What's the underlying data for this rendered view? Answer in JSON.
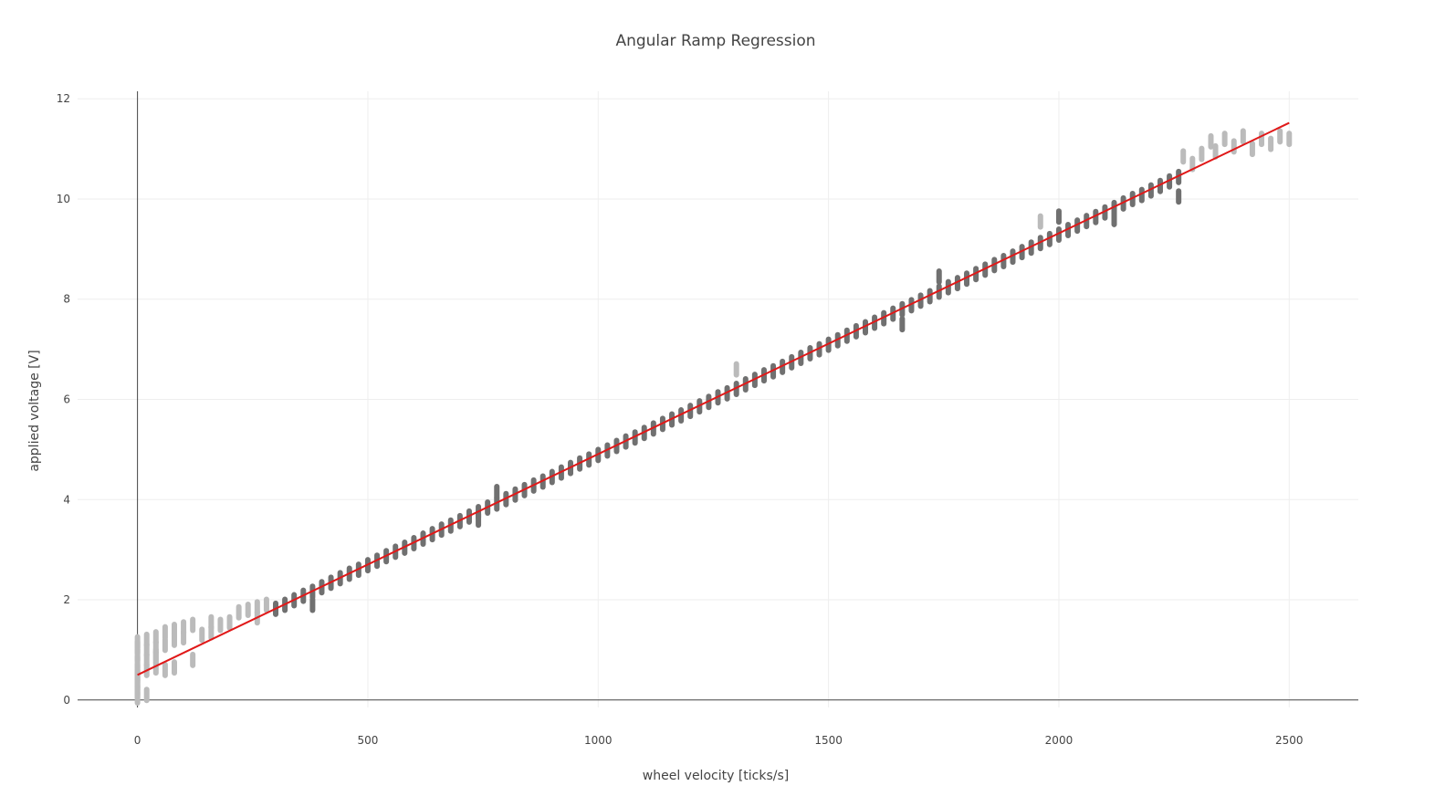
{
  "chart_data": {
    "type": "scatter",
    "title": "Angular Ramp Regression",
    "xlabel": "wheel velocity [ticks/s]",
    "ylabel": "applied voltage [V]",
    "xlim": [
      -130,
      2650
    ],
    "ylim": [
      -0.15,
      12.15
    ],
    "x_ticks": [
      0,
      500,
      1000,
      1500,
      2000,
      2500
    ],
    "y_ticks": [
      0,
      2,
      4,
      6,
      8,
      10,
      12
    ],
    "grid": true,
    "legend": "none",
    "colors": {
      "fit_line": "#e01818",
      "included": "#707070",
      "excluded": "#bbbbbb",
      "zero_line": "#444444",
      "grid": "#eeeeee"
    },
    "series": [
      {
        "kind": "fit_line",
        "x": [
          0,
          2500
        ],
        "y": [
          0.5,
          11.52
        ]
      },
      {
        "kind": "points",
        "role": "excluded",
        "x": [
          0,
          0,
          0,
          0,
          0,
          0,
          0,
          0,
          0,
          0,
          0,
          0,
          20,
          20,
          20,
          20,
          20,
          40,
          40,
          40,
          40,
          40,
          60,
          60,
          60,
          80,
          80,
          80,
          100,
          100,
          120,
          120,
          140,
          160,
          160,
          180,
          200,
          220,
          240,
          260,
          260,
          280,
          2270,
          2290,
          2310,
          2330,
          2340,
          2360,
          2380,
          2400,
          2420,
          2440,
          2460,
          2480,
          2500,
          1300,
          1960
        ],
        "y": [
          0.05,
          0.15,
          0.3,
          0.45,
          0.6,
          0.75,
          0.9,
          1.05,
          1.15,
          0.2,
          0.35,
          0.5,
          1.2,
          1.0,
          0.8,
          0.6,
          0.1,
          1.25,
          1.05,
          0.85,
          0.65,
          0.9,
          1.35,
          1.1,
          0.6,
          1.4,
          1.2,
          0.65,
          1.45,
          1.25,
          1.5,
          0.8,
          1.3,
          1.55,
          1.35,
          1.5,
          1.55,
          1.75,
          1.8,
          1.85,
          1.65,
          1.9,
          10.85,
          10.7,
          10.9,
          11.15,
          10.95,
          11.2,
          11.05,
          11.25,
          11.0,
          11.2,
          11.1,
          11.25,
          11.2,
          6.6,
          9.55
        ]
      },
      {
        "kind": "points",
        "role": "included",
        "x": [
          300,
          320,
          340,
          360,
          380,
          400,
          420,
          440,
          460,
          480,
          500,
          520,
          540,
          560,
          580,
          600,
          620,
          640,
          660,
          680,
          700,
          720,
          740,
          760,
          780,
          800,
          820,
          840,
          860,
          880,
          900,
          920,
          940,
          960,
          980,
          1000,
          1020,
          1040,
          1060,
          1080,
          1100,
          1120,
          1140,
          1160,
          1180,
          1200,
          1220,
          1240,
          1260,
          1280,
          1300,
          1320,
          1340,
          1360,
          1380,
          1400,
          1420,
          1440,
          1460,
          1480,
          1500,
          1520,
          1540,
          1560,
          1580,
          1600,
          1620,
          1640,
          1660,
          1680,
          1700,
          1720,
          1740,
          1760,
          1780,
          1800,
          1820,
          1840,
          1860,
          1880,
          1900,
          1920,
          1940,
          1960,
          1980,
          2000,
          2020,
          2040,
          2060,
          2080,
          2100,
          2120,
          2140,
          2160,
          2180,
          2200,
          2220,
          2240,
          2260,
          380,
          740,
          780,
          1660,
          1740,
          2000,
          2120,
          2260
        ],
        "y": [
          1.82,
          1.9,
          1.99,
          2.08,
          2.16,
          2.25,
          2.34,
          2.43,
          2.52,
          2.6,
          2.69,
          2.78,
          2.87,
          2.96,
          3.04,
          3.13,
          3.22,
          3.31,
          3.4,
          3.48,
          3.57,
          3.66,
          3.75,
          3.84,
          3.92,
          4.01,
          4.1,
          4.19,
          4.28,
          4.36,
          4.45,
          4.54,
          4.63,
          4.72,
          4.8,
          4.89,
          4.98,
          5.07,
          5.16,
          5.24,
          5.33,
          5.42,
          5.51,
          5.6,
          5.68,
          5.77,
          5.86,
          5.95,
          6.04,
          6.12,
          6.21,
          6.3,
          6.39,
          6.48,
          6.56,
          6.65,
          6.74,
          6.83,
          6.92,
          7.0,
          7.09,
          7.18,
          7.27,
          7.36,
          7.44,
          7.53,
          7.62,
          7.71,
          7.8,
          7.88,
          7.97,
          8.06,
          8.15,
          8.24,
          8.32,
          8.41,
          8.5,
          8.59,
          8.68,
          8.76,
          8.85,
          8.94,
          9.03,
          9.12,
          9.2,
          9.29,
          9.38,
          9.47,
          9.56,
          9.64,
          9.73,
          9.82,
          9.91,
          10.0,
          10.08,
          10.17,
          10.26,
          10.35,
          10.44,
          1.9,
          3.6,
          4.15,
          7.5,
          8.45,
          9.65,
          9.6,
          10.05
        ]
      }
    ]
  }
}
